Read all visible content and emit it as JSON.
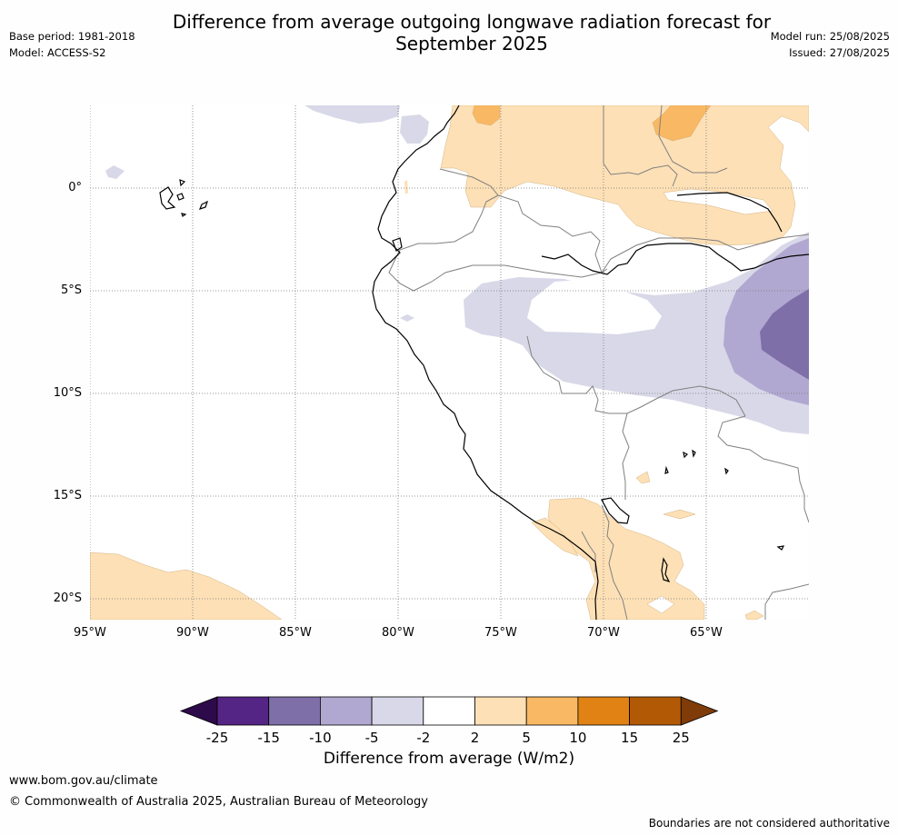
{
  "title_line1": "Difference from average outgoing longwave radiation forecast for",
  "title_line2": "September 2025",
  "meta_left": {
    "base_period": "Base period: 1981-2018",
    "model": "Model: ACCESS-S2"
  },
  "meta_right": {
    "model_run": "Model run: 25/08/2025",
    "issued": "Issued: 27/08/2025"
  },
  "lat_labels": [
    "0°",
    "5°S",
    "10°S",
    "15°S",
    "20°S"
  ],
  "lon_labels": [
    "95°W",
    "90°W",
    "85°W",
    "80°W",
    "75°W",
    "70°W",
    "65°W"
  ],
  "colorbar": {
    "ticks": [
      "-25",
      "-15",
      "-10",
      "-5",
      "-2",
      "2",
      "5",
      "10",
      "15",
      "25"
    ],
    "colors": [
      "#2d0a4a",
      "#542584",
      "#7f6fa8",
      "#b1a8d1",
      "#d8d8e8",
      "#ffffff",
      "#fde0b6",
      "#f9b863",
      "#e08214",
      "#b25906",
      "#7f3b08"
    ],
    "label": "Difference from average (W/m2)"
  },
  "footer": {
    "url": "www.bom.gov.au/climate",
    "copyright": "© Commonwealth of Australia 2025, Australian Bureau of Meteorology",
    "note": "Boundaries are not considered authoritative"
  }
}
